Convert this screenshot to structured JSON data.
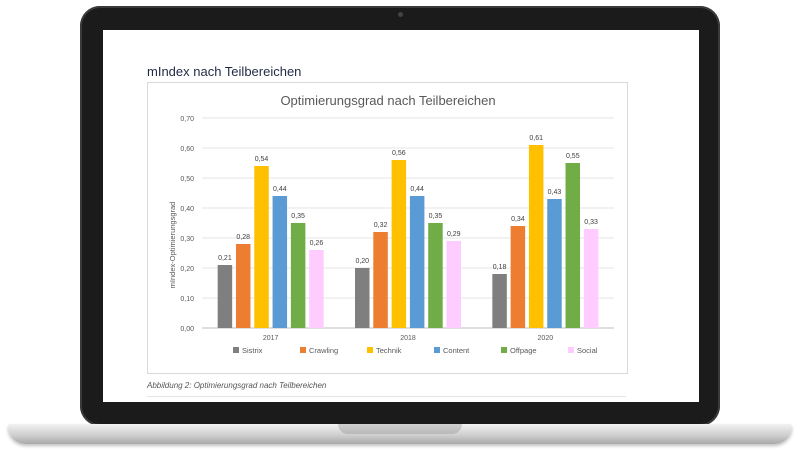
{
  "page": {
    "heading": "mIndex nach Teilbereichen",
    "caption": "Abbildung 2: Optimierungsgrad nach Teilbereichen"
  },
  "chart_data": {
    "type": "bar",
    "title": "Optimierungsgrad nach Teilbereichen",
    "xlabel": "",
    "ylabel": "mIndex-Optimierungsgrad",
    "categories": [
      "2017",
      "2018",
      "2020"
    ],
    "ylim": [
      0,
      0.7
    ],
    "yticks": [
      "0,00",
      "0,10",
      "0,20",
      "0,30",
      "0,40",
      "0,50",
      "0,60",
      "0,70"
    ],
    "grid": true,
    "legend_position": "bottom",
    "series": [
      {
        "name": "Sistrix",
        "color": "#7f7f7f",
        "values": [
          0.21,
          0.2,
          0.18
        ],
        "labels": [
          "0,21",
          "0,20",
          "0,18"
        ]
      },
      {
        "name": "Crawling",
        "color": "#ed7d31",
        "values": [
          0.28,
          0.32,
          0.34
        ],
        "labels": [
          "0,28",
          "0,32",
          "0,34"
        ]
      },
      {
        "name": "Technik",
        "color": "#ffc000",
        "values": [
          0.54,
          0.56,
          0.61
        ],
        "labels": [
          "0,54",
          "0,56",
          "0,61"
        ]
      },
      {
        "name": "Content",
        "color": "#5b9bd5",
        "values": [
          0.44,
          0.44,
          0.43
        ],
        "labels": [
          "0,44",
          "0,44",
          "0,43"
        ]
      },
      {
        "name": "Offpage",
        "color": "#70ad47",
        "values": [
          0.35,
          0.35,
          0.55
        ],
        "labels": [
          "0,35",
          "0,35",
          "0,55"
        ]
      },
      {
        "name": "Social",
        "color": "#ffccff",
        "values": [
          0.26,
          0.29,
          0.33
        ],
        "labels": [
          "0,26",
          "0,29",
          "0,33"
        ]
      }
    ]
  }
}
